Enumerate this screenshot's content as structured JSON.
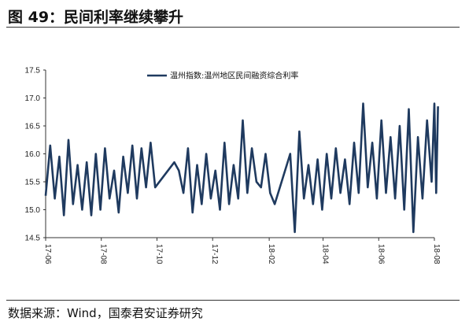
{
  "figure": {
    "title": "图 49：民间利率继续攀升",
    "source": "数据来源：Wind，国泰君安证券研究"
  },
  "chart_data": {
    "type": "line",
    "title": "",
    "xlabel": "",
    "ylabel": "",
    "ylim": [
      14.5,
      17.5
    ],
    "yticks": [
      "17.5",
      "17.0",
      "16.5",
      "16.0",
      "15.5",
      "15.0",
      "14.5"
    ],
    "xticks": [
      "17-06",
      "17-08",
      "17-10",
      "17-12",
      "18-02",
      "18-04",
      "18-06",
      "18-08"
    ],
    "grid": false,
    "legend_position": "top-center",
    "line_color": "#1f3a5f",
    "series": [
      {
        "name": "温州指数:温州地区民间融资综合利率",
        "x": [
          "2017-06-01",
          "2017-06-06",
          "2017-06-11",
          "2017-06-16",
          "2017-06-21",
          "2017-06-26",
          "2017-07-01",
          "2017-07-06",
          "2017-07-11",
          "2017-07-16",
          "2017-07-21",
          "2017-07-26",
          "2017-07-31",
          "2017-08-05",
          "2017-08-10",
          "2017-08-15",
          "2017-08-20",
          "2017-08-25",
          "2017-08-30",
          "2017-09-04",
          "2017-09-09",
          "2017-09-14",
          "2017-09-19",
          "2017-09-24",
          "2017-09-29",
          "2017-10-20",
          "2017-10-25",
          "2017-10-30",
          "2017-11-04",
          "2017-11-09",
          "2017-11-14",
          "2017-11-19",
          "2017-11-24",
          "2017-11-29",
          "2017-12-04",
          "2017-12-09",
          "2017-12-14",
          "2017-12-19",
          "2017-12-24",
          "2017-12-29",
          "2018-01-03",
          "2018-01-08",
          "2018-01-13",
          "2018-01-18",
          "2018-01-23",
          "2018-01-28",
          "2018-02-02",
          "2018-02-07",
          "2018-02-24",
          "2018-03-01",
          "2018-03-06",
          "2018-03-11",
          "2018-03-16",
          "2018-03-21",
          "2018-03-26",
          "2018-03-31",
          "2018-04-05",
          "2018-04-10",
          "2018-04-15",
          "2018-04-20",
          "2018-04-25",
          "2018-04-30",
          "2018-05-05",
          "2018-05-10",
          "2018-05-15",
          "2018-05-20",
          "2018-05-25",
          "2018-05-30",
          "2018-06-04",
          "2018-06-09",
          "2018-06-14",
          "2018-06-19",
          "2018-06-24",
          "2018-06-29",
          "2018-07-04",
          "2018-07-09",
          "2018-07-14",
          "2018-07-19",
          "2018-07-24",
          "2018-07-29",
          "2018-08-01",
          "2018-08-03",
          "2018-08-05"
        ],
        "values": [
          15.25,
          16.15,
          15.2,
          15.95,
          14.9,
          16.25,
          15.1,
          15.8,
          15.0,
          15.85,
          14.9,
          16.0,
          15.0,
          16.1,
          15.2,
          15.7,
          14.95,
          15.95,
          15.3,
          16.15,
          15.2,
          16.1,
          15.4,
          16.2,
          15.4,
          15.85,
          15.7,
          15.3,
          16.1,
          14.95,
          15.8,
          15.1,
          16.0,
          15.2,
          15.7,
          15.0,
          16.2,
          15.1,
          15.8,
          15.2,
          16.6,
          15.3,
          16.1,
          15.5,
          15.4,
          16.0,
          15.3,
          15.1,
          16.0,
          14.6,
          16.4,
          15.2,
          15.8,
          15.1,
          15.9,
          15.0,
          16.0,
          15.2,
          16.1,
          15.3,
          15.9,
          15.1,
          16.2,
          15.3,
          16.9,
          15.4,
          16.2,
          15.2,
          16.6,
          15.3,
          16.3,
          15.2,
          16.5,
          15.0,
          16.8,
          14.6,
          16.3,
          15.2,
          16.6,
          15.5,
          16.9,
          15.3,
          16.85
        ]
      }
    ]
  }
}
